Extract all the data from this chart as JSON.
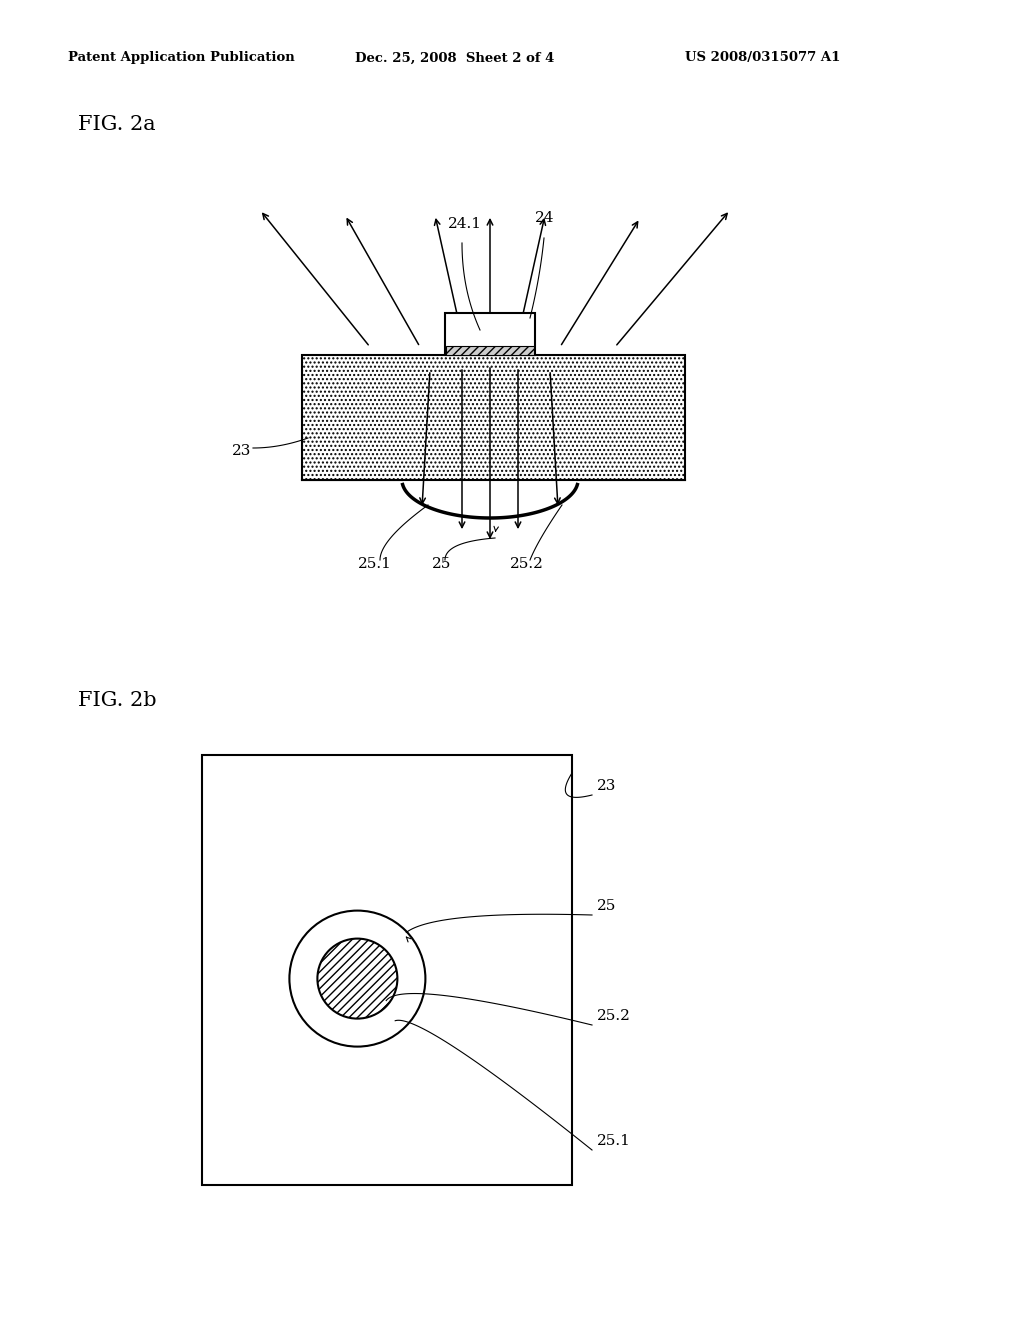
{
  "bg_color": "#ffffff",
  "header_left": "Patent Application Publication",
  "header_mid": "Dec. 25, 2008  Sheet 2 of 4",
  "header_right": "US 2008/0315077 A1",
  "fig2a_label": "FIG. 2a",
  "fig2b_label": "FIG. 2b",
  "labels": {
    "24_1": "24.1",
    "24": "24",
    "23": "23",
    "25_1": "25.1",
    "25": "25",
    "25_2": "25.2",
    "23b": "23",
    "25b": "25",
    "25_2b": "25.2",
    "25_1b": "25.1"
  }
}
